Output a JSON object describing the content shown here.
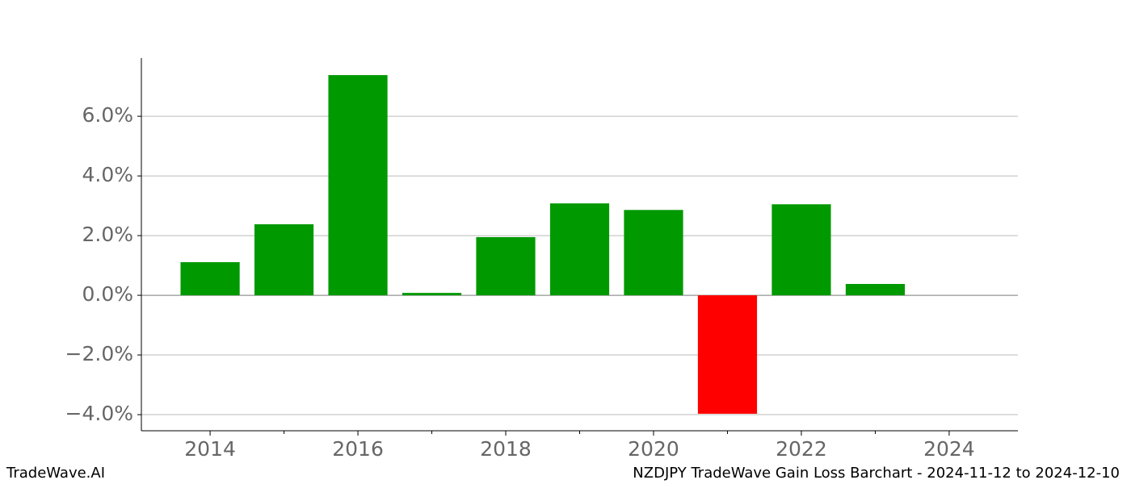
{
  "chart_data": {
    "type": "bar",
    "x": [
      2014,
      2015,
      2016,
      2017,
      2018,
      2019,
      2020,
      2021,
      2022,
      2023
    ],
    "values": [
      1.11,
      2.38,
      7.38,
      0.08,
      1.95,
      3.08,
      2.86,
      -3.97,
      3.05,
      0.38
    ],
    "positive_color": "#009900",
    "negative_color": "#ff0000",
    "xlim": [
      2013.07,
      2024.93
    ],
    "xticks": [
      2014,
      2016,
      2018,
      2020,
      2022,
      2024
    ],
    "xminor_ticks": [
      2015,
      2017,
      2019,
      2021,
      2023
    ],
    "ylim": [
      -4.54,
      7.95
    ],
    "yticks": [
      {
        "value": -4,
        "label": "−4.0%"
      },
      {
        "value": -2,
        "label": "−2.0%"
      },
      {
        "value": 0,
        "label": "0.0%"
      },
      {
        "value": 2,
        "label": "2.0%"
      },
      {
        "value": 4,
        "label": "4.0%"
      },
      {
        "value": 6,
        "label": "6.0%"
      }
    ],
    "grid": true,
    "watermark": "TradeWave.AI",
    "caption": "NZDJPY TradeWave Gain Loss Barchart - 2024-11-12 to 2024-12-10"
  }
}
